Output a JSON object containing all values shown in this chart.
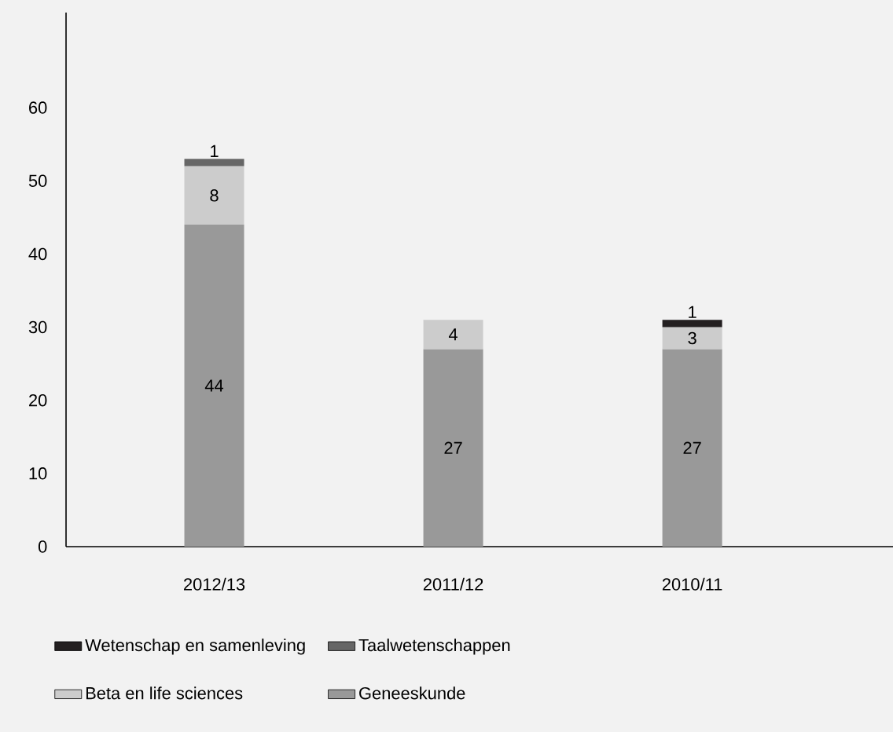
{
  "chart_data": {
    "type": "bar",
    "stacked": true,
    "categories": [
      "2012/13",
      "2011/12",
      "2010/11"
    ],
    "series": [
      {
        "name": "Geneeskunde",
        "color": "#999999",
        "values": [
          44,
          27,
          27
        ]
      },
      {
        "name": "Beta en life sciences",
        "color": "#cccccc",
        "values": [
          8,
          4,
          3
        ]
      },
      {
        "name": "Taalwetenschappen",
        "color": "#666666",
        "values": [
          1,
          null,
          null
        ]
      },
      {
        "name": "Wetenschap en samenleving",
        "color": "#231f20",
        "values": [
          null,
          null,
          1
        ]
      }
    ],
    "ylim": [
      0,
      73
    ],
    "yticks": [
      0,
      10,
      20,
      30,
      40,
      50,
      60
    ],
    "grid": false,
    "legend": "bottom",
    "data_labels": true
  }
}
